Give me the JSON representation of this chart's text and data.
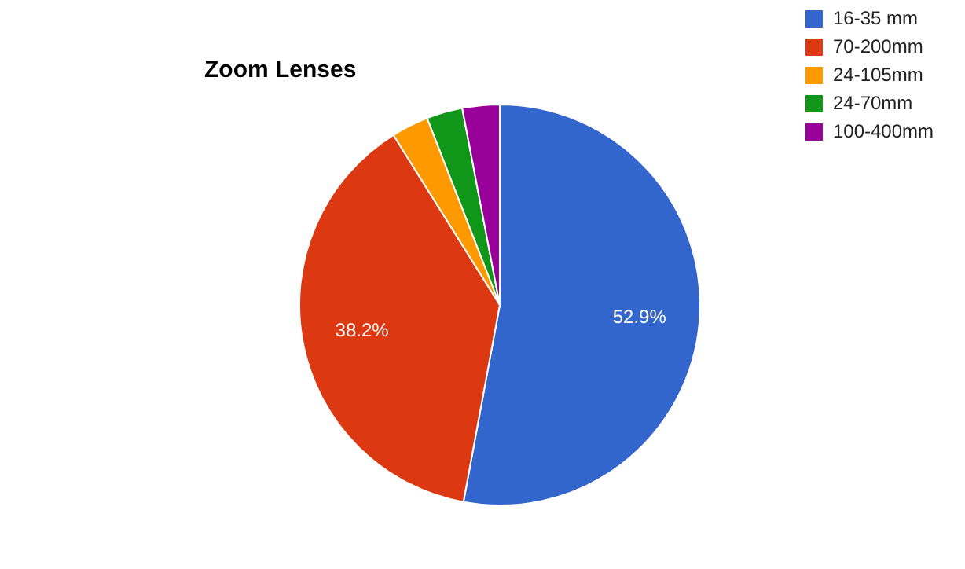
{
  "chart_data": {
    "type": "pie",
    "title": "Zoom Lenses",
    "categories": [
      "16-35 mm",
      "70-200mm",
      "24-105mm",
      "24-70mm",
      "100-400mm"
    ],
    "values": [
      52.9,
      38.2,
      3.0,
      2.9,
      3.0
    ],
    "colors": [
      "#3366cc",
      "#dc3912",
      "#ff9900",
      "#109618",
      "#990099"
    ],
    "value_labels": [
      "52.9%",
      "38.2%",
      null,
      null,
      null
    ],
    "legend": "right"
  }
}
